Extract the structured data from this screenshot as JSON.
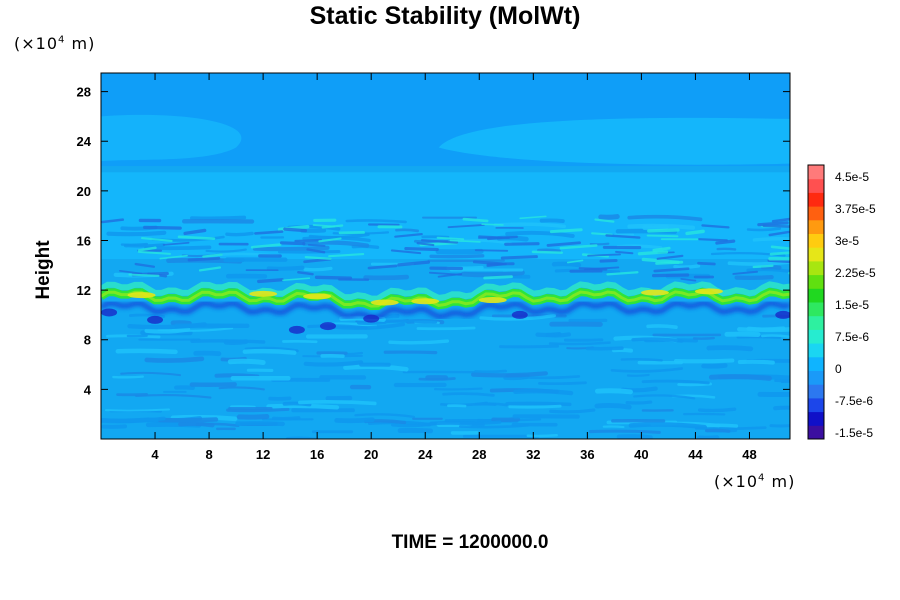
{
  "chart_data": {
    "type": "heatmap",
    "title": "Static Stability (MolWt)",
    "ylabel": "Height",
    "xlabel": "",
    "y_unit": "(×10⁴ m)",
    "x_unit": "(×10⁴ m)",
    "footer": "TIME = 1200000.0",
    "xlim": [
      0,
      51
    ],
    "ylim": [
      0,
      29.5
    ],
    "x_ticks": [
      "4",
      "8",
      "12",
      "16",
      "20",
      "24",
      "28",
      "32",
      "36",
      "40",
      "44",
      "48"
    ],
    "y_ticks": [
      "4",
      "8",
      "12",
      "16",
      "20",
      "24",
      "28"
    ],
    "colorbar": {
      "labels": [
        "4.5e-5",
        "3.75e-5",
        "3e-5",
        "2.25e-5",
        "1.5e-5",
        "7.5e-6",
        "0",
        "-7.5e-6",
        "-1.5e-5"
      ],
      "colors": [
        "#3b0fa0",
        "#1010c8",
        "#1c46ea",
        "#2c78f0",
        "#1a9af8",
        "#0fb4ff",
        "#1ad6f2",
        "#26ecd0",
        "#2ef0a0",
        "#2ee860",
        "#20d820",
        "#60e010",
        "#a8e610",
        "#e6e618",
        "#ffcc10",
        "#ff9a10",
        "#ff6010",
        "#ff2a10",
        "#ff5050",
        "#ff7a7a"
      ]
    },
    "field": {
      "background": "#12a8f2",
      "upper_band": "#0f9ef8",
      "stratosphere": "#14b6fb",
      "tropopause_height": 11.5,
      "tropopause_color": "#2ee43a"
    }
  }
}
